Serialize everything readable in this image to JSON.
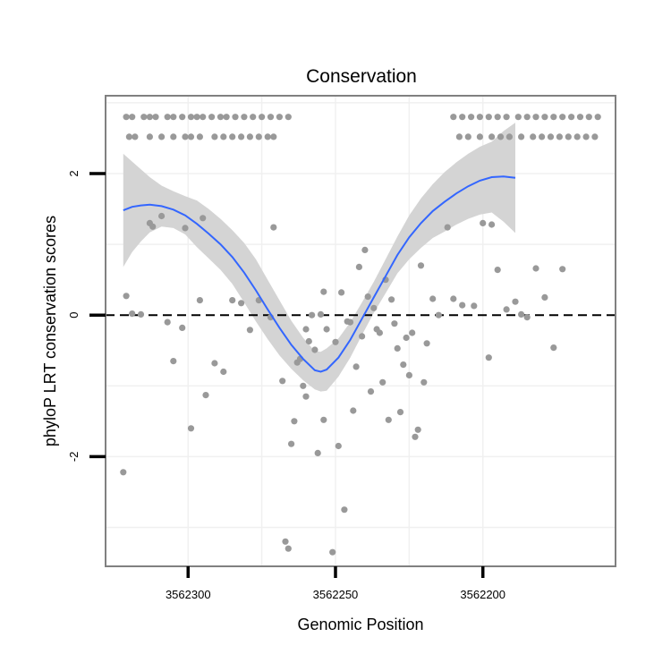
{
  "chart_data": {
    "type": "scatter",
    "title": "Conservation",
    "xlabel": "Genomic Position",
    "ylabel": "phyloP LRT conservation scores",
    "x_reversed": true,
    "xlim": [
      3562328,
      3562155
    ],
    "ylim": [
      -3.55,
      3.1
    ],
    "x_ticks": [
      3562300,
      3562250,
      3562200
    ],
    "x_tick_labels": [
      "3562300",
      "3562250",
      "3562200"
    ],
    "y_ticks": [
      -2,
      0,
      2
    ],
    "y_tick_labels": [
      "-2",
      "0",
      "2"
    ],
    "reference_line": {
      "y": 0,
      "style": "dashed"
    },
    "colors": {
      "points": "#999999",
      "smooth": "#3366ff",
      "ribbon": "#d4d4d4",
      "panel_border": "#808080",
      "grid": "#f0f0f0"
    },
    "series": [
      {
        "name": "phyloP scores",
        "type": "scatter",
        "points": [
          [
            3562321,
            2.8
          ],
          [
            3562319,
            2.8
          ],
          [
            3562315,
            2.8
          ],
          [
            3562313,
            2.8
          ],
          [
            3562311,
            2.8
          ],
          [
            3562307,
            2.8
          ],
          [
            3562305,
            2.8
          ],
          [
            3562302,
            2.8
          ],
          [
            3562299,
            2.8
          ],
          [
            3562297,
            2.8
          ],
          [
            3562295,
            2.8
          ],
          [
            3562292,
            2.8
          ],
          [
            3562289,
            2.8
          ],
          [
            3562287,
            2.8
          ],
          [
            3562284,
            2.8
          ],
          [
            3562281,
            2.8
          ],
          [
            3562278,
            2.8
          ],
          [
            3562275,
            2.8
          ],
          [
            3562272,
            2.8
          ],
          [
            3562269,
            2.8
          ],
          [
            3562266,
            2.8
          ],
          [
            3562320,
            2.52
          ],
          [
            3562318,
            2.52
          ],
          [
            3562313,
            2.52
          ],
          [
            3562309,
            2.52
          ],
          [
            3562305,
            2.52
          ],
          [
            3562301,
            2.52
          ],
          [
            3562299,
            2.52
          ],
          [
            3562296,
            2.52
          ],
          [
            3562291,
            2.52
          ],
          [
            3562288,
            2.52
          ],
          [
            3562285,
            2.52
          ],
          [
            3562282,
            2.52
          ],
          [
            3562279,
            2.52
          ],
          [
            3562276,
            2.52
          ],
          [
            3562273,
            2.52
          ],
          [
            3562271,
            2.52
          ],
          [
            3562210,
            2.8
          ],
          [
            3562207,
            2.8
          ],
          [
            3562204,
            2.8
          ],
          [
            3562201,
            2.8
          ],
          [
            3562198,
            2.8
          ],
          [
            3562195,
            2.8
          ],
          [
            3562192,
            2.8
          ],
          [
            3562188,
            2.8
          ],
          [
            3562185,
            2.8
          ],
          [
            3562182,
            2.8
          ],
          [
            3562179,
            2.8
          ],
          [
            3562176,
            2.8
          ],
          [
            3562173,
            2.8
          ],
          [
            3562170,
            2.8
          ],
          [
            3562167,
            2.8
          ],
          [
            3562164,
            2.8
          ],
          [
            3562161,
            2.8
          ],
          [
            3562208,
            2.52
          ],
          [
            3562205,
            2.52
          ],
          [
            3562201,
            2.52
          ],
          [
            3562197,
            2.52
          ],
          [
            3562194,
            2.52
          ],
          [
            3562191,
            2.52
          ],
          [
            3562187,
            2.52
          ],
          [
            3562183,
            2.52
          ],
          [
            3562180,
            2.52
          ],
          [
            3562177,
            2.52
          ],
          [
            3562174,
            2.52
          ],
          [
            3562171,
            2.52
          ],
          [
            3562168,
            2.52
          ],
          [
            3562165,
            2.52
          ],
          [
            3562162,
            2.52
          ],
          [
            3562322,
            -2.22
          ],
          [
            3562321,
            0.27
          ],
          [
            3562319,
            0.02
          ],
          [
            3562316,
            0.01
          ],
          [
            3562313,
            1.3
          ],
          [
            3562312,
            1.25
          ],
          [
            3562309,
            1.4
          ],
          [
            3562307,
            -0.1
          ],
          [
            3562305,
            -0.65
          ],
          [
            3562302,
            -0.18
          ],
          [
            3562301,
            1.23
          ],
          [
            3562299,
            -1.6
          ],
          [
            3562296,
            0.21
          ],
          [
            3562295,
            1.37
          ],
          [
            3562294,
            -1.13
          ],
          [
            3562291,
            -0.68
          ],
          [
            3562288,
            -0.8
          ],
          [
            3562285,
            0.21
          ],
          [
            3562282,
            0.17
          ],
          [
            3562279,
            -0.21
          ],
          [
            3562276,
            0.21
          ],
          [
            3562272,
            -0.03
          ],
          [
            3562271,
            1.24
          ],
          [
            3562268,
            -0.93
          ],
          [
            3562267,
            -3.2
          ],
          [
            3562266,
            -3.3
          ],
          [
            3562265,
            -1.82
          ],
          [
            3562264,
            -1.5
          ],
          [
            3562263,
            -0.67
          ],
          [
            3562262,
            -0.62
          ],
          [
            3562261,
            -1.0
          ],
          [
            3562260,
            -1.15
          ],
          [
            3562260,
            -0.2
          ],
          [
            3562259,
            -0.37
          ],
          [
            3562258,
            0.0
          ],
          [
            3562257,
            -0.49
          ],
          [
            3562256,
            -1.95
          ],
          [
            3562255,
            0.01
          ],
          [
            3562254,
            0.33
          ],
          [
            3562254,
            -1.48
          ],
          [
            3562253,
            -0.2
          ],
          [
            3562251,
            -3.35
          ],
          [
            3562250,
            -0.38
          ],
          [
            3562249,
            -1.85
          ],
          [
            3562248,
            0.32
          ],
          [
            3562247,
            -2.75
          ],
          [
            3562246,
            -0.09
          ],
          [
            3562245,
            -0.1
          ],
          [
            3562244,
            -1.35
          ],
          [
            3562243,
            -0.73
          ],
          [
            3562242,
            0.68
          ],
          [
            3562241,
            -0.3
          ],
          [
            3562240,
            0.92
          ],
          [
            3562239,
            0.26
          ],
          [
            3562238,
            -1.08
          ],
          [
            3562237,
            0.1
          ],
          [
            3562236,
            -0.2
          ],
          [
            3562235,
            -0.25
          ],
          [
            3562234,
            -0.95
          ],
          [
            3562233,
            0.5
          ],
          [
            3562232,
            -1.48
          ],
          [
            3562231,
            0.22
          ],
          [
            3562230,
            -0.12
          ],
          [
            3562229,
            -0.47
          ],
          [
            3562228,
            -1.37
          ],
          [
            3562227,
            -0.7
          ],
          [
            3562226,
            -0.32
          ],
          [
            3562225,
            -0.85
          ],
          [
            3562224,
            -0.25
          ],
          [
            3562223,
            -1.72
          ],
          [
            3562222,
            -1.62
          ],
          [
            3562221,
            0.7
          ],
          [
            3562220,
            -0.95
          ],
          [
            3562219,
            -0.4
          ],
          [
            3562217,
            0.23
          ],
          [
            3562215,
            0.0
          ],
          [
            3562212,
            1.24
          ],
          [
            3562210,
            0.23
          ],
          [
            3562207,
            0.14
          ],
          [
            3562203,
            0.13
          ],
          [
            3562200,
            1.3
          ],
          [
            3562198,
            -0.6
          ],
          [
            3562197,
            1.28
          ],
          [
            3562195,
            0.64
          ],
          [
            3562192,
            0.08
          ],
          [
            3562189,
            0.19
          ],
          [
            3562187,
            0.01
          ],
          [
            3562185,
            -0.03
          ],
          [
            3562182,
            0.66
          ],
          [
            3562179,
            0.25
          ],
          [
            3562176,
            -0.46
          ],
          [
            3562173,
            0.65
          ]
        ]
      },
      {
        "name": "smooth",
        "type": "line",
        "points": [
          [
            3562322,
            1.48
          ],
          [
            3562319,
            1.53
          ],
          [
            3562316,
            1.55
          ],
          [
            3562313,
            1.56
          ],
          [
            3562309,
            1.54
          ],
          [
            3562305,
            1.49
          ],
          [
            3562301,
            1.41
          ],
          [
            3562297,
            1.29
          ],
          [
            3562293,
            1.15
          ],
          [
            3562289,
            1.0
          ],
          [
            3562285,
            0.82
          ],
          [
            3562281,
            0.6
          ],
          [
            3562277,
            0.35
          ],
          [
            3562273,
            0.08
          ],
          [
            3562269,
            -0.18
          ],
          [
            3562265,
            -0.42
          ],
          [
            3562261,
            -0.62
          ],
          [
            3562257,
            -0.78
          ],
          [
            3562255,
            -0.8
          ],
          [
            3562253,
            -0.77
          ],
          [
            3562249,
            -0.6
          ],
          [
            3562245,
            -0.35
          ],
          [
            3562241,
            -0.05
          ],
          [
            3562237,
            0.25
          ],
          [
            3562233,
            0.55
          ],
          [
            3562229,
            0.85
          ],
          [
            3562225,
            1.1
          ],
          [
            3562221,
            1.3
          ],
          [
            3562217,
            1.47
          ],
          [
            3562213,
            1.6
          ],
          [
            3562209,
            1.72
          ],
          [
            3562205,
            1.82
          ],
          [
            3562201,
            1.9
          ],
          [
            3562197,
            1.95
          ],
          [
            3562193,
            1.96
          ],
          [
            3562189,
            1.94
          ]
        ]
      },
      {
        "name": "confidence band",
        "type": "area",
        "upper": [
          2.28,
          2.17,
          2.06,
          1.95,
          1.83,
          1.75,
          1.68,
          1.62,
          1.5,
          1.36,
          1.2,
          1.02,
          0.79,
          0.5,
          0.21,
          -0.08,
          -0.32,
          -0.51,
          -0.52,
          -0.47,
          -0.33,
          -0.1,
          0.18,
          0.47,
          0.79,
          1.11,
          1.41,
          1.65,
          1.85,
          2.02,
          2.16,
          2.28,
          2.38,
          2.45,
          2.6,
          2.72
        ],
        "lower": [
          0.68,
          0.89,
          1.04,
          1.17,
          1.25,
          1.23,
          1.14,
          0.96,
          0.8,
          0.64,
          0.44,
          0.18,
          -0.09,
          -0.34,
          -0.57,
          -0.76,
          -0.92,
          -1.05,
          -1.08,
          -1.07,
          -0.87,
          -0.6,
          -0.28,
          0.03,
          0.31,
          0.59,
          0.79,
          0.95,
          1.09,
          1.18,
          1.28,
          1.36,
          1.42,
          1.45,
          1.32,
          1.16
        ]
      }
    ]
  }
}
